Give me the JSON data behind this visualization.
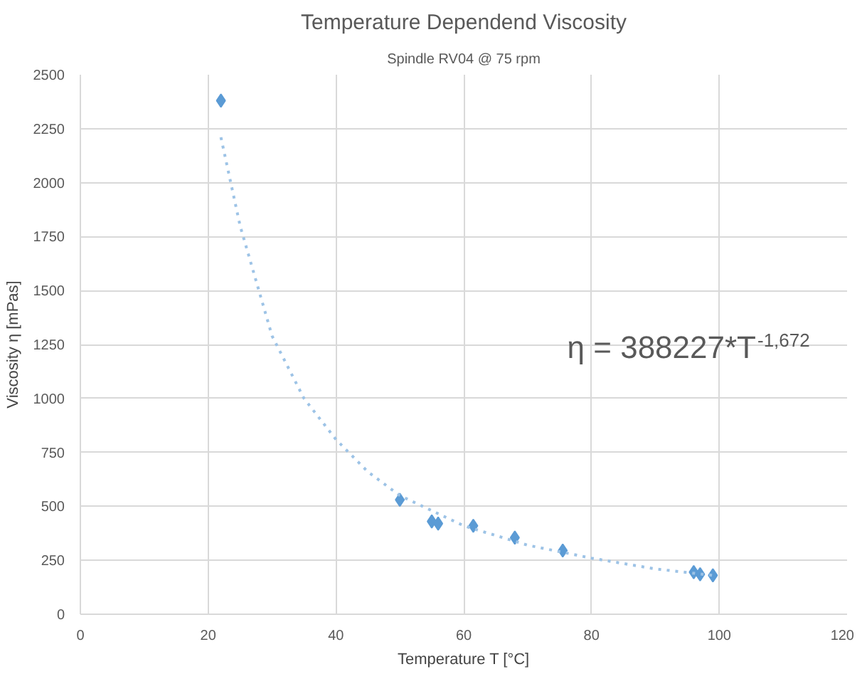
{
  "chart_data": {
    "type": "scatter",
    "title": "Temperature Dependend Viscosity",
    "subtitle": "Spindle RV04 @ 75 rpm",
    "xlabel": "Temperature T [°C]",
    "ylabel": "Viscosity η [mPas]",
    "xlim": [
      0,
      120
    ],
    "xticks": [
      0,
      20,
      40,
      60,
      80,
      100,
      120
    ],
    "ylim": [
      0,
      2500
    ],
    "yticks": [
      0,
      250,
      500,
      750,
      1000,
      1250,
      1500,
      1750,
      2000,
      2250,
      2500
    ],
    "grid": true,
    "series": [
      {
        "marker": "diamond",
        "color": "#5b9bd5",
        "x": [
          22,
          50,
          55,
          56,
          61.5,
          68,
          75.5,
          96,
          97,
          99
        ],
        "values": [
          2380,
          530,
          430,
          420,
          410,
          355,
          295,
          195,
          185,
          180
        ]
      },
      {
        "type": "line",
        "color": "#9dc3e6",
        "line_style": "dotted",
        "x": [
          22,
          25,
          30,
          35,
          40,
          45,
          50,
          60,
          70,
          80,
          90,
          99
        ],
        "values": [
          2210,
          1800,
          1290,
          1000,
          810,
          660,
          550,
          410,
          320,
          260,
          210,
          180
        ]
      }
    ],
    "annotations": [
      "η = 388227*T$^{-1,672}$"
    ]
  }
}
